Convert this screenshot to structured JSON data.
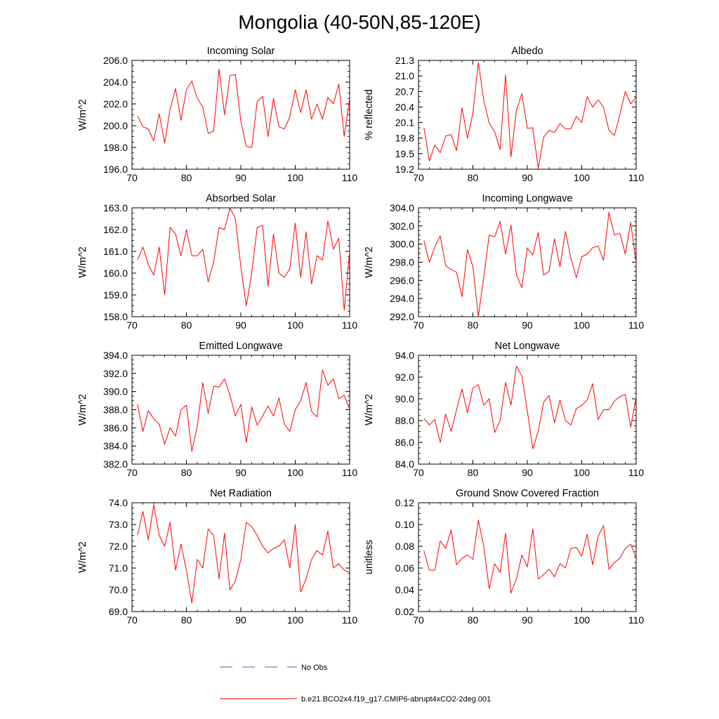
{
  "figure_title": "Mongolia (40-50N,85-120E)",
  "legend": [
    {
      "label": "No Obs",
      "color": "#5a5ad8",
      "dash": "dashed"
    },
    {
      "label": "b.e21.BCO2x4.f19_g17.CMIP6-abrupt4xCO2-2deg.001",
      "color": "#ff0000",
      "dash": "solid"
    }
  ],
  "chart_data": [
    {
      "type": "line",
      "title": "Incoming Solar",
      "ylabel": "W/m^2",
      "xlim": [
        70,
        110
      ],
      "xticks": [
        70,
        80,
        90,
        100,
        110
      ],
      "ylim": [
        196,
        206
      ],
      "yticks": [
        196,
        198,
        200,
        202,
        204,
        206
      ],
      "ydecimals": 1,
      "yminor": 0.5,
      "x_start": 71,
      "series": [
        {
          "name": "b.e21.BCO2x4.f19_g17.CMIP6-abrupt4xCO2-2deg.001",
          "color": "#ff0000",
          "values": [
            200.9,
            199.9,
            199.7,
            198.6,
            201.1,
            198.4,
            201.5,
            203.4,
            200.5,
            203.3,
            204.1,
            202.5,
            201.7,
            199.3,
            199.5,
            205.2,
            201.0,
            204.6,
            204.7,
            200.4,
            198.1,
            198.0,
            202.2,
            202.7,
            199.0,
            202.5,
            199.9,
            199.7,
            200.8,
            203.3,
            201.2,
            203.3,
            200.6,
            202.0,
            200.6,
            202.6,
            202.0,
            203.8,
            199.0,
            202.5
          ]
        }
      ]
    },
    {
      "type": "line",
      "title": "Albedo",
      "ylabel": "% reflected",
      "xlim": [
        70,
        110
      ],
      "xticks": [
        70,
        80,
        90,
        100,
        110
      ],
      "ylim": [
        19.2,
        21.3
      ],
      "yticks": [
        19.2,
        19.5,
        19.8,
        20.1,
        20.4,
        20.7,
        21.0,
        21.3
      ],
      "ydecimals": 1,
      "yminor": 0.1,
      "x_start": 71,
      "series": [
        {
          "name": "b.e21.BCO2x4.f19_g17.CMIP6-abrupt4xCO2-2deg.001",
          "color": "#ff0000",
          "values": [
            20.0,
            19.36,
            19.67,
            19.52,
            19.84,
            19.87,
            19.56,
            20.39,
            19.8,
            20.28,
            21.26,
            20.53,
            20.09,
            19.92,
            19.58,
            21.02,
            19.44,
            20.34,
            20.66,
            19.99,
            20.0,
            19.22,
            19.82,
            19.95,
            19.91,
            20.08,
            19.98,
            19.98,
            20.22,
            20.1,
            20.6,
            20.4,
            20.54,
            20.4,
            19.95,
            19.85,
            20.25,
            20.7,
            20.46,
            20.6
          ]
        }
      ]
    },
    {
      "type": "line",
      "title": "Absorbed Solar",
      "ylabel": "W/m^2",
      "xlim": [
        70,
        110
      ],
      "xticks": [
        70,
        80,
        90,
        100,
        110
      ],
      "ylim": [
        158,
        163
      ],
      "yticks": [
        158,
        159,
        160,
        161,
        162,
        163
      ],
      "ydecimals": 1,
      "yminor": 0.25,
      "x_start": 71,
      "series": [
        {
          "name": "b.e21.BCO2x4.f19_g17.CMIP6-abrupt4xCO2-2deg.001",
          "color": "#ff0000",
          "values": [
            160.6,
            161.2,
            160.4,
            159.9,
            161.2,
            159.0,
            162.1,
            161.8,
            160.8,
            162.0,
            160.8,
            160.8,
            161.1,
            159.6,
            160.5,
            162.1,
            162.0,
            163.0,
            162.5,
            160.3,
            158.5,
            160.0,
            162.1,
            162.2,
            159.4,
            161.8,
            160.0,
            159.8,
            160.2,
            162.3,
            159.8,
            161.9,
            159.5,
            160.8,
            160.6,
            162.4,
            161.1,
            161.6,
            158.3,
            161.0
          ]
        }
      ]
    },
    {
      "type": "line",
      "title": "Incoming Longwave",
      "ylabel": "W/m^2",
      "xlim": [
        70,
        110
      ],
      "xticks": [
        70,
        80,
        90,
        100,
        110
      ],
      "ylim": [
        292,
        304
      ],
      "yticks": [
        292,
        294,
        296,
        298,
        300,
        302,
        304
      ],
      "ydecimals": 1,
      "yminor": 0.5,
      "x_start": 71,
      "series": [
        {
          "name": "b.e21.BCO2x4.f19_g17.CMIP6-abrupt4xCO2-2deg.001",
          "color": "#ff0000",
          "values": [
            300.4,
            298.0,
            299.7,
            300.9,
            297.6,
            297.2,
            296.9,
            294.2,
            299.4,
            297.5,
            292.0,
            296.4,
            301.0,
            300.8,
            302.5,
            298.9,
            302.1,
            296.6,
            295.2,
            299.6,
            298.8,
            301.3,
            296.6,
            297.0,
            300.6,
            297.5,
            301.4,
            298.5,
            296.3,
            298.6,
            298.9,
            299.6,
            299.8,
            298.2,
            303.5,
            301.0,
            301.2,
            298.9,
            302.4,
            297.9
          ]
        }
      ]
    },
    {
      "type": "line",
      "title": "Emitted Longwave",
      "ylabel": "W/m^2",
      "xlim": [
        70,
        110
      ],
      "xticks": [
        70,
        80,
        90,
        100,
        110
      ],
      "ylim": [
        382,
        394
      ],
      "yticks": [
        382,
        384,
        386,
        388,
        390,
        392,
        394
      ],
      "ydecimals": 1,
      "yminor": 0.5,
      "x_start": 71,
      "series": [
        {
          "name": "b.e21.BCO2x4.f19_g17.CMIP6-abrupt4xCO2-2deg.001",
          "color": "#ff0000",
          "values": [
            388.6,
            385.6,
            387.9,
            387.0,
            386.4,
            384.2,
            386.0,
            385.1,
            388.0,
            388.5,
            383.4,
            386.2,
            391.0,
            387.6,
            390.6,
            390.5,
            391.4,
            389.6,
            387.3,
            388.6,
            384.4,
            388.3,
            386.3,
            387.3,
            388.4,
            387.3,
            389.3,
            386.4,
            385.6,
            388.0,
            389.0,
            391.0,
            387.8,
            387.2,
            392.4,
            390.7,
            391.4,
            389.2,
            389.6,
            388.0
          ]
        }
      ]
    },
    {
      "type": "line",
      "title": "Net Longwave",
      "ylabel": "W/m^2",
      "xlim": [
        70,
        110
      ],
      "xticks": [
        70,
        80,
        90,
        100,
        110
      ],
      "ylim": [
        84,
        94
      ],
      "yticks": [
        84,
        86,
        88,
        90,
        92,
        94
      ],
      "ydecimals": 1,
      "yminor": 0.5,
      "x_start": 71,
      "series": [
        {
          "name": "b.e21.BCO2x4.f19_g17.CMIP6-abrupt4xCO2-2deg.001",
          "color": "#ff0000",
          "values": [
            88.2,
            87.6,
            88.1,
            86.0,
            88.6,
            87.0,
            89.0,
            90.9,
            88.7,
            91.0,
            91.3,
            89.4,
            90.0,
            86.9,
            88.0,
            91.5,
            89.4,
            93.0,
            92.1,
            88.9,
            85.4,
            87.0,
            89.7,
            90.3,
            87.8,
            89.9,
            88.0,
            87.6,
            89.1,
            89.4,
            89.9,
            91.4,
            88.1,
            89.0,
            89.0,
            89.8,
            90.2,
            90.4,
            87.4,
            90.2
          ]
        }
      ]
    },
    {
      "type": "line",
      "title": "Net Radiation",
      "ylabel": "W/m^2",
      "xlim": [
        70,
        110
      ],
      "xticks": [
        70,
        80,
        90,
        100,
        110
      ],
      "ylim": [
        69,
        74
      ],
      "yticks": [
        69,
        70,
        71,
        72,
        73,
        74
      ],
      "ydecimals": 1,
      "yminor": 0.25,
      "x_start": 71,
      "series": [
        {
          "name": "b.e21.BCO2x4.f19_g17.CMIP6-abrupt4xCO2-2deg.001",
          "color": "#ff0000",
          "values": [
            72.5,
            73.6,
            72.3,
            73.9,
            72.5,
            72.0,
            73.1,
            70.9,
            72.1,
            70.9,
            69.4,
            71.4,
            71.0,
            72.8,
            72.5,
            70.5,
            72.6,
            70.0,
            70.4,
            71.4,
            73.1,
            72.9,
            72.5,
            72.0,
            71.7,
            71.9,
            72.0,
            72.3,
            71.0,
            73.0,
            69.9,
            70.5,
            71.4,
            71.8,
            71.6,
            72.7,
            71.0,
            71.2,
            70.9,
            70.8
          ]
        }
      ]
    },
    {
      "type": "line",
      "title": "Ground Snow Covered Fraction",
      "ylabel": "unitless",
      "xlim": [
        70,
        110
      ],
      "xticks": [
        70,
        80,
        90,
        100,
        110
      ],
      "ylim": [
        0.02,
        0.12
      ],
      "yticks": [
        0.02,
        0.04,
        0.06,
        0.08,
        0.1,
        0.12
      ],
      "ydecimals": 2,
      "yminor": 0.005,
      "x_start": 71,
      "series": [
        {
          "name": "b.e21.BCO2x4.f19_g17.CMIP6-abrupt4xCO2-2deg.001",
          "color": "#ff0000",
          "values": [
            0.076,
            0.058,
            0.058,
            0.085,
            0.078,
            0.095,
            0.063,
            0.069,
            0.072,
            0.068,
            0.104,
            0.08,
            0.041,
            0.064,
            0.056,
            0.092,
            0.037,
            0.05,
            0.072,
            0.061,
            0.096,
            0.05,
            0.054,
            0.059,
            0.052,
            0.064,
            0.06,
            0.078,
            0.079,
            0.071,
            0.091,
            0.063,
            0.089,
            0.099,
            0.059,
            0.065,
            0.069,
            0.078,
            0.082,
            0.069
          ]
        }
      ]
    }
  ]
}
